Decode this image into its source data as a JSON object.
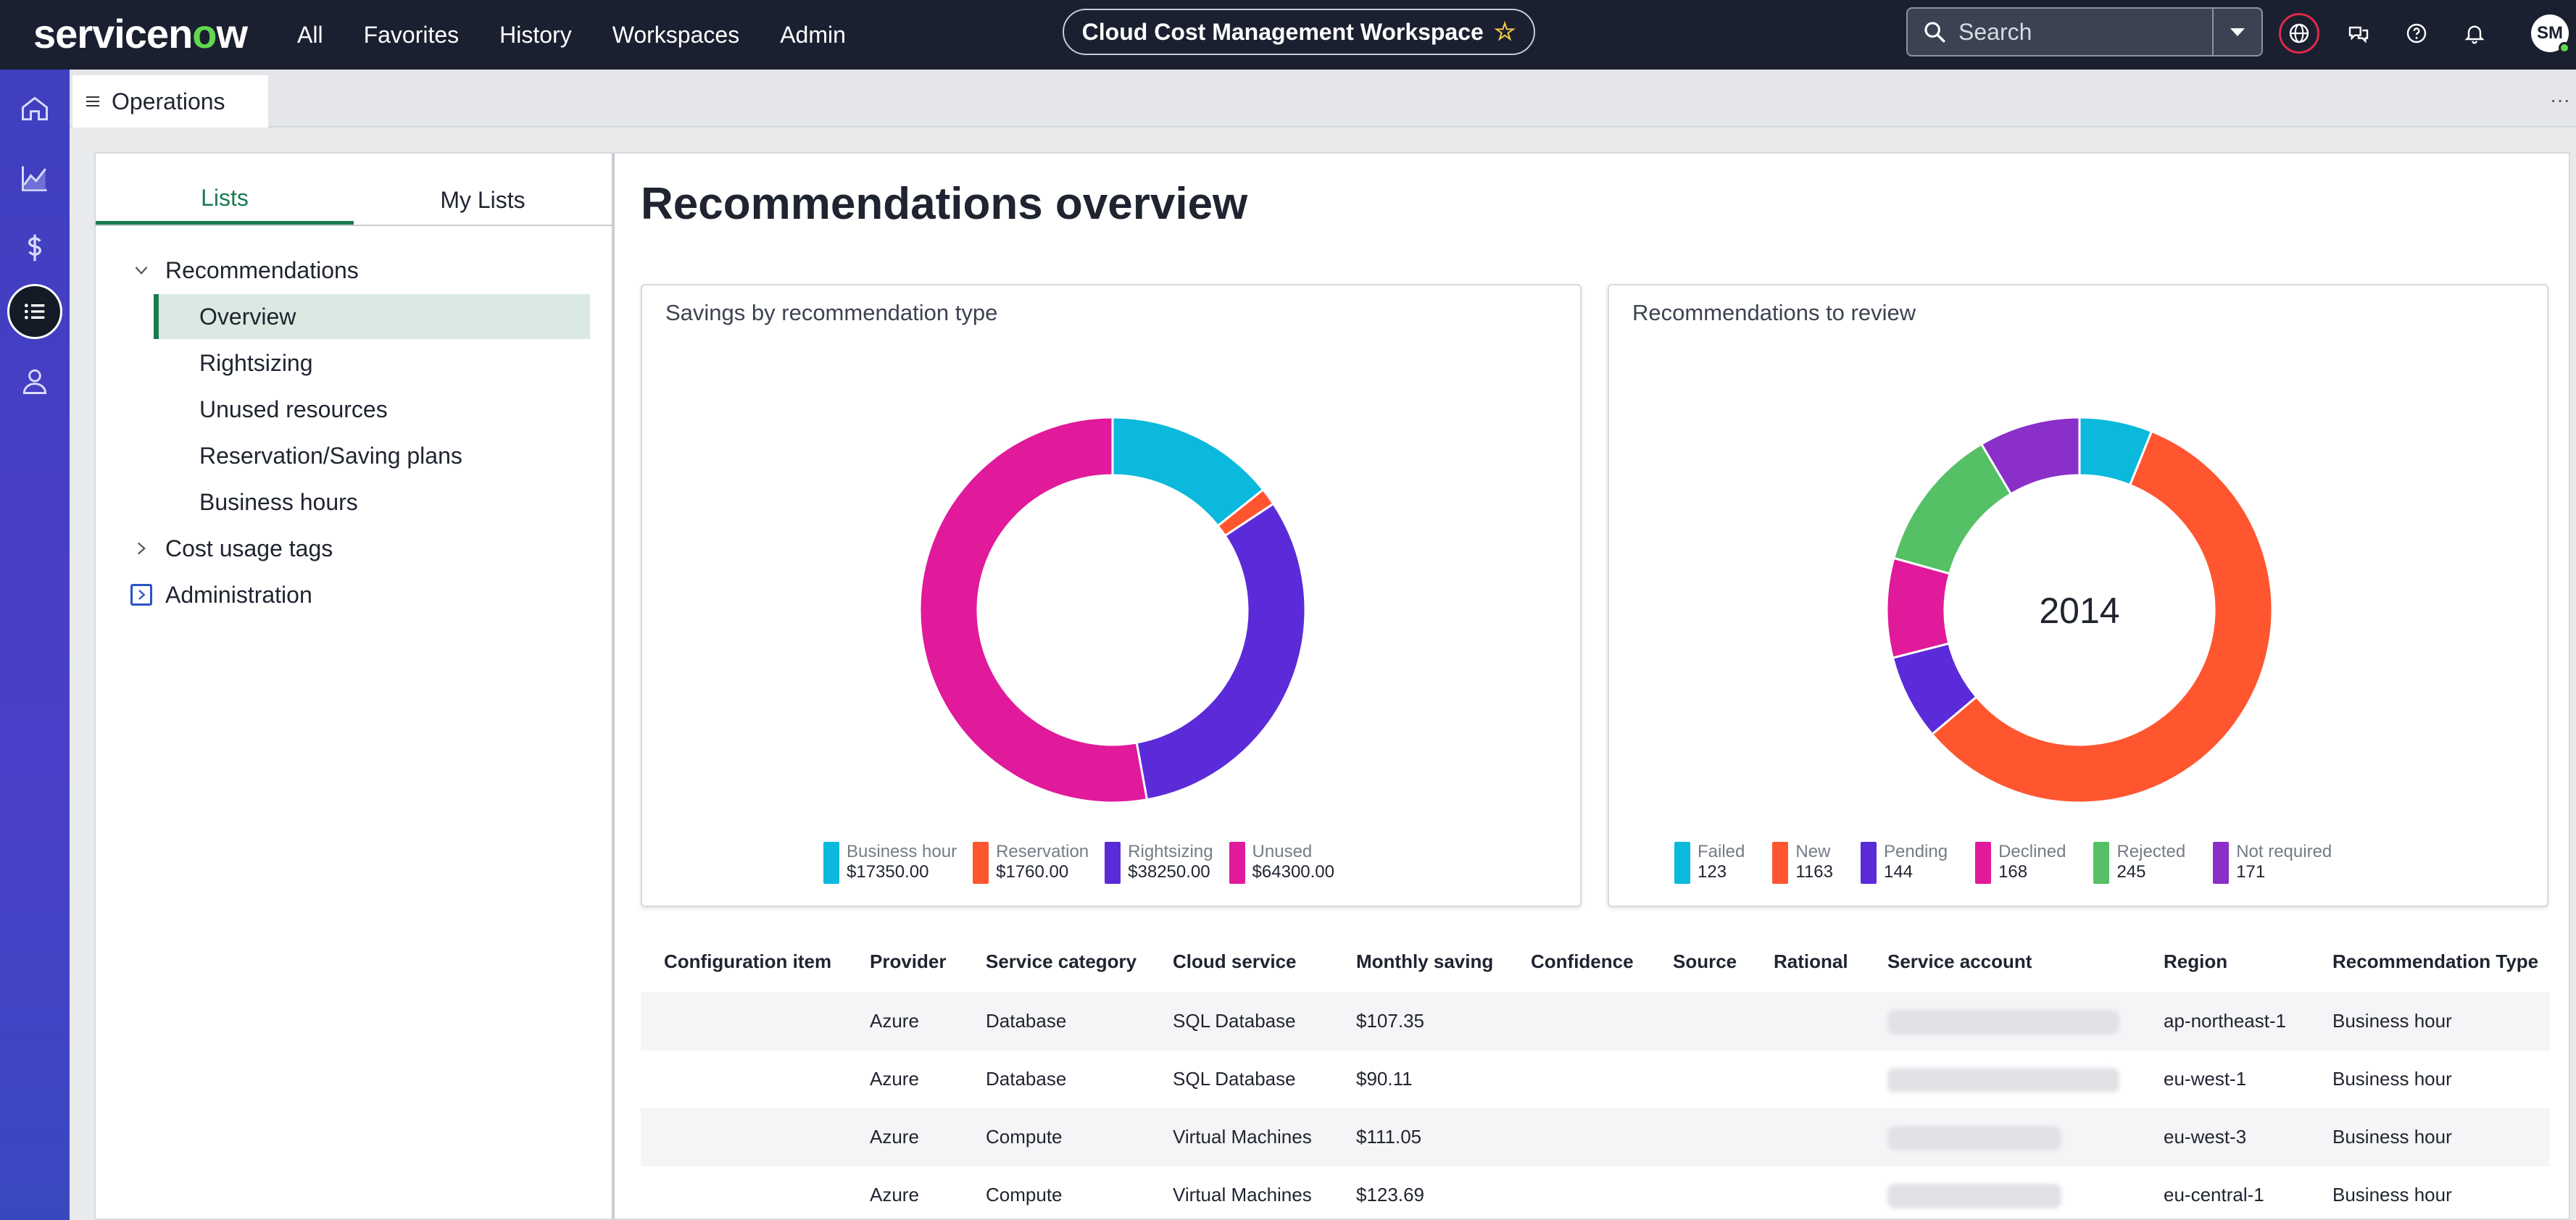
{
  "header": {
    "logo": "servicenow",
    "nav": [
      "All",
      "Favorites",
      "History",
      "Workspaces",
      "Admin"
    ],
    "workspace_title": "Cloud Cost Management Workspace",
    "search_placeholder": "Search",
    "avatar_initials": "SM"
  },
  "rail": {
    "icons": [
      "home-icon",
      "analytics-icon",
      "dollar-icon",
      "list-icon",
      "user-icon"
    ]
  },
  "tabbar": {
    "tab_label": "Operations"
  },
  "leftnav": {
    "tabs": [
      "Lists",
      "My Lists"
    ],
    "tree": {
      "recommendations": "Recommendations",
      "children": [
        "Overview",
        "Rightsizing",
        "Unused resources",
        "Reservation/Saving plans",
        "Business hours"
      ],
      "cost_usage_tags": "Cost usage tags",
      "administration": "Administration"
    }
  },
  "main": {
    "title": "Recommendations overview"
  },
  "cards": {
    "savings": {
      "title": "Savings by recommendation type",
      "legend": [
        {
          "label": "Business hour",
          "value": "$17350.00",
          "color": "#0ab9dc"
        },
        {
          "label": "Reservation",
          "value": "$1760.00",
          "color": "#ff5630"
        },
        {
          "label": "Rightsizing",
          "value": "$38250.00",
          "color": "#5b2bd9"
        },
        {
          "label": "Unused",
          "value": "$64300.00",
          "color": "#e01a9a"
        }
      ]
    },
    "review": {
      "title": "Recommendations to review",
      "total": "2014",
      "legend": [
        {
          "label": "Failed",
          "value": "123",
          "color": "#0ab9dc"
        },
        {
          "label": "New",
          "value": "1163",
          "color": "#ff5630"
        },
        {
          "label": "Pending",
          "value": "144",
          "color": "#5b2bd9"
        },
        {
          "label": "Declined",
          "value": "168",
          "color": "#e01a9a"
        },
        {
          "label": "Rejected",
          "value": "245",
          "color": "#55c065"
        },
        {
          "label": "Not required",
          "value": "171",
          "color": "#8a30c8"
        }
      ]
    }
  },
  "chart_data": [
    {
      "type": "pie",
      "title": "Savings by recommendation type",
      "categories": [
        "Business hour",
        "Reservation",
        "Rightsizing",
        "Unused"
      ],
      "values": [
        17350.0,
        1760.0,
        38250.0,
        64300.0
      ]
    },
    {
      "type": "pie",
      "title": "Recommendations to review",
      "categories": [
        "Failed",
        "New",
        "Pending",
        "Declined",
        "Rejected",
        "Not required"
      ],
      "values": [
        123,
        1163,
        144,
        168,
        245,
        171
      ]
    }
  ],
  "table": {
    "columns": [
      "Configuration item",
      "Provider",
      "Service category",
      "Cloud service",
      "Monthly saving",
      "Confidence",
      "Source",
      "Rational",
      "Service account",
      "Region",
      "Recommendation Type"
    ],
    "rows": [
      {
        "provider": "Azure",
        "category": "Database",
        "service": "SQL Database",
        "saving": "$107.35",
        "region": "ap-northeast-1",
        "type": "Business hour"
      },
      {
        "provider": "Azure",
        "category": "Database",
        "service": "SQL Database",
        "saving": "$90.11",
        "region": "eu-west-1",
        "type": "Business hour"
      },
      {
        "provider": "Azure",
        "category": "Compute",
        "service": "Virtual Machines",
        "saving": "$111.05",
        "region": "eu-west-3",
        "type": "Business hour"
      },
      {
        "provider": "Azure",
        "category": "Compute",
        "service": "Virtual Machines",
        "saving": "$123.69",
        "region": "eu-central-1",
        "type": "Business hour"
      }
    ]
  }
}
